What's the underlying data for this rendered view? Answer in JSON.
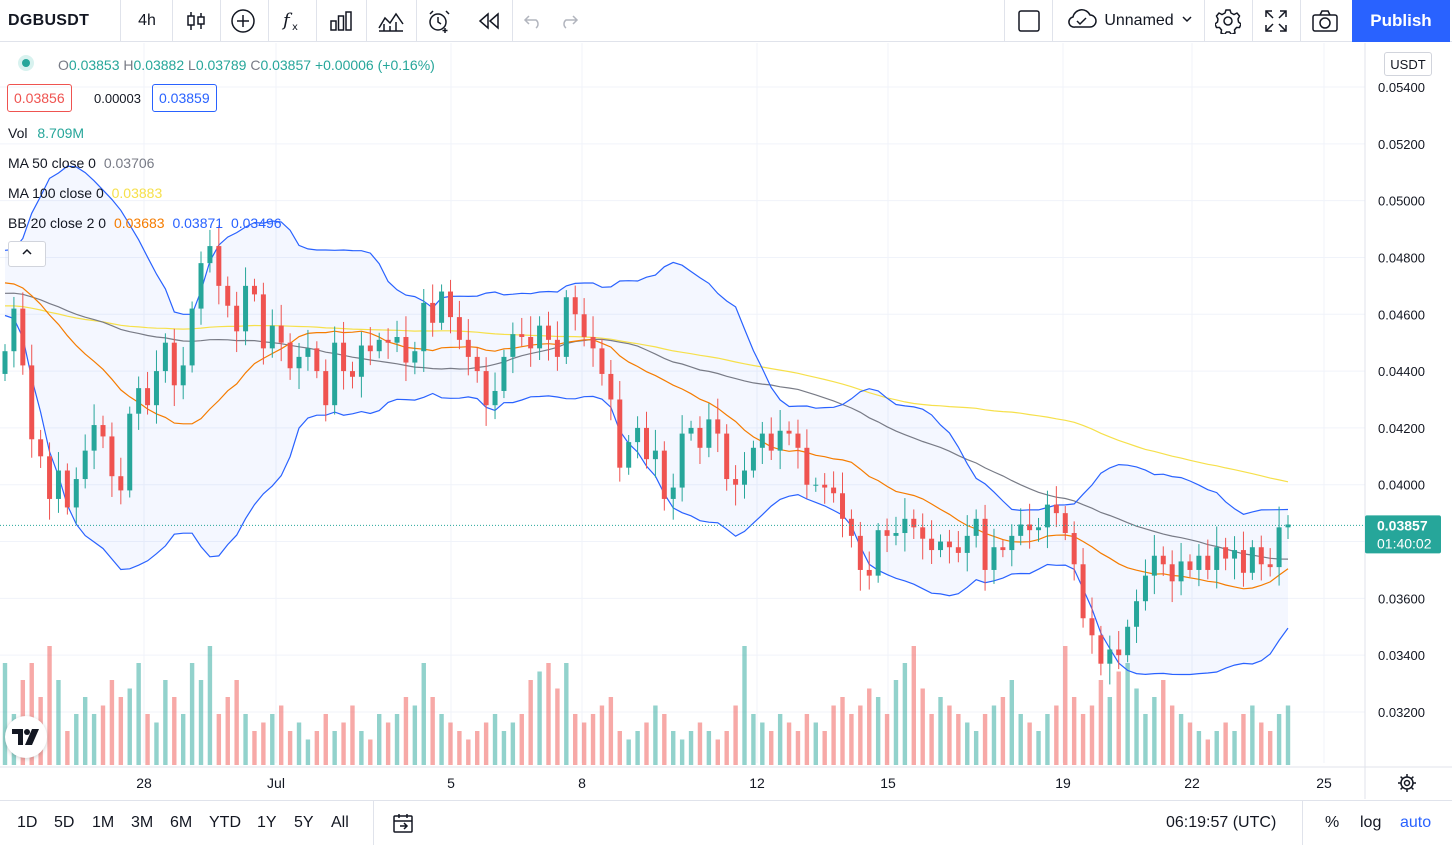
{
  "toolbar": {
    "symbol": "DGBUSDT",
    "interval": "4h",
    "layout_name": "Unnamed",
    "publish_label": "Publish",
    "icons": [
      "candles-icon",
      "add-indicator-icon",
      "fx-icon",
      "bar-chart-icon",
      "templates-icon",
      "alert-icon",
      "replay-icon",
      "undo-icon",
      "redo-icon",
      "square-icon",
      "cloud-icon",
      "chevron-down-icon",
      "gear-icon",
      "fullscreen-icon",
      "camera-icon"
    ]
  },
  "legend": {
    "ohlc": {
      "o_key": "O",
      "o": "0.03853",
      "h_key": "H",
      "h": "0.03882",
      "l_key": "L",
      "l": "0.03789",
      "c_key": "C",
      "c": "0.03857",
      "change": "+0.00006 (+0.16%)"
    },
    "bid": "0.03856",
    "spread": "0.00003",
    "ask": "0.03859",
    "vol": {
      "label": "Vol",
      "value": "8.709M"
    },
    "ma50": {
      "label": "MA 50 close 0",
      "value": "0.03706"
    },
    "ma100": {
      "label": "MA 100 close 0",
      "value": "0.03883"
    },
    "bb": {
      "label": "BB 20 close 2 0",
      "basis": "0.03683",
      "upper": "0.03871",
      "lower": "0.03496"
    }
  },
  "colors": {
    "up": "#26a69a",
    "down": "#ef5350",
    "ma50": "#787b86",
    "ma100": "#f6e04b",
    "bb_basis": "#f57c00",
    "bb_band": "#2962ff",
    "accent": "#2962ff"
  },
  "price_scale": {
    "currency": "USDT",
    "ticks": [
      "0.05400",
      "0.05200",
      "0.05000",
      "0.04800",
      "0.04600",
      "0.04400",
      "0.04200",
      "0.04000",
      "0.03800",
      "0.03600",
      "0.03400",
      "0.03200"
    ],
    "last_price": "0.03857",
    "countdown": "01:40:02"
  },
  "time_scale": {
    "ticks": [
      "28",
      "Jul",
      "5",
      "8",
      "12",
      "15",
      "19",
      "22",
      "25"
    ]
  },
  "bottom": {
    "ranges": [
      "1D",
      "5D",
      "1M",
      "3M",
      "6M",
      "YTD",
      "1Y",
      "5Y",
      "All"
    ],
    "clock": "06:19:57 (UTC)",
    "percent": "%",
    "log": "log",
    "auto": "auto"
  },
  "chart_data": {
    "type": "candlestick",
    "symbol": "DGBUSDT",
    "interval": "4h",
    "y_range": [
      0.0305,
      0.0547
    ],
    "closes": [
      0.0447,
      0.0462,
      0.0442,
      0.0416,
      0.041,
      0.0395,
      0.0405,
      0.0392,
      0.0402,
      0.0412,
      0.0421,
      0.0417,
      0.0403,
      0.0398,
      0.0425,
      0.0434,
      0.0428,
      0.044,
      0.045,
      0.0435,
      0.0442,
      0.0462,
      0.0478,
      0.0484,
      0.047,
      0.0463,
      0.0454,
      0.047,
      0.0467,
      0.0448,
      0.0456,
      0.045,
      0.0441,
      0.0445,
      0.0448,
      0.044,
      0.0428,
      0.045,
      0.044,
      0.0438,
      0.0449,
      0.0447,
      0.0451,
      0.045,
      0.0452,
      0.0443,
      0.0447,
      0.0464,
      0.0457,
      0.0468,
      0.0459,
      0.0451,
      0.0445,
      0.044,
      0.0428,
      0.0433,
      0.0445,
      0.0453,
      0.0452,
      0.0448,
      0.0456,
      0.0451,
      0.0445,
      0.0466,
      0.046,
      0.0452,
      0.0448,
      0.0439,
      0.043,
      0.0406,
      0.0415,
      0.042,
      0.0409,
      0.0412,
      0.0395,
      0.0399,
      0.0418,
      0.042,
      0.0413,
      0.0423,
      0.0418,
      0.0402,
      0.04,
      0.0405,
      0.0413,
      0.0418,
      0.0412,
      0.0419,
      0.0418,
      0.0413,
      0.04,
      0.04,
      0.0399,
      0.0397,
      0.0388,
      0.0382,
      0.037,
      0.0368,
      0.0384,
      0.0382,
      0.0383,
      0.0388,
      0.0385,
      0.0381,
      0.0377,
      0.038,
      0.0378,
      0.0376,
      0.0382,
      0.0388,
      0.037,
      0.0378,
      0.0377,
      0.0382,
      0.0386,
      0.0384,
      0.0385,
      0.0393,
      0.039,
      0.0383,
      0.0372,
      0.0353,
      0.0347,
      0.0337,
      0.0342,
      0.034,
      0.035,
      0.0359,
      0.0368,
      0.0375,
      0.0372,
      0.0366,
      0.0373,
      0.037,
      0.0375,
      0.037,
      0.0378,
      0.0374,
      0.0377,
      0.0369,
      0.0378,
      0.0372,
      0.0371,
      0.0385,
      0.0386
    ],
    "volume_relative": [
      0.6,
      0.3,
      0.5,
      0.6,
      0.4,
      0.7,
      0.5,
      0.2,
      0.3,
      0.4,
      0.3,
      0.35,
      0.5,
      0.4,
      0.45,
      0.6,
      0.3,
      0.25,
      0.5,
      0.4,
      0.3,
      0.6,
      0.5,
      0.7,
      0.3,
      0.4,
      0.5,
      0.3,
      0.2,
      0.25,
      0.3,
      0.35,
      0.2,
      0.25,
      0.15,
      0.2,
      0.3,
      0.2,
      0.25,
      0.35,
      0.2,
      0.15,
      0.3,
      0.25,
      0.3,
      0.4,
      0.35,
      0.6,
      0.4,
      0.3,
      0.25,
      0.2,
      0.15,
      0.2,
      0.25,
      0.3,
      0.2,
      0.25,
      0.3,
      0.5,
      0.55,
      0.6,
      0.45,
      0.6,
      0.3,
      0.25,
      0.3,
      0.35,
      0.4,
      0.2,
      0.15,
      0.2,
      0.25,
      0.35,
      0.3,
      0.2,
      0.15,
      0.2,
      0.25,
      0.2,
      0.15,
      0.2,
      0.35,
      0.7,
      0.3,
      0.25,
      0.2,
      0.3,
      0.25,
      0.2,
      0.3,
      0.25,
      0.2,
      0.35,
      0.4,
      0.3,
      0.35,
      0.45,
      0.4,
      0.3,
      0.5,
      0.6,
      0.7,
      0.45,
      0.3,
      0.4,
      0.35,
      0.3,
      0.25,
      0.2,
      0.3,
      0.35,
      0.4,
      0.5,
      0.3,
      0.25,
      0.2,
      0.3,
      0.35,
      0.7,
      0.4,
      0.3,
      0.35,
      0.5,
      0.4,
      0.55,
      0.6,
      0.45,
      0.3,
      0.4,
      0.5,
      0.35,
      0.3,
      0.25,
      0.2,
      0.15,
      0.2,
      0.25,
      0.2,
      0.3,
      0.35,
      0.25,
      0.2,
      0.3,
      0.35
    ]
  }
}
